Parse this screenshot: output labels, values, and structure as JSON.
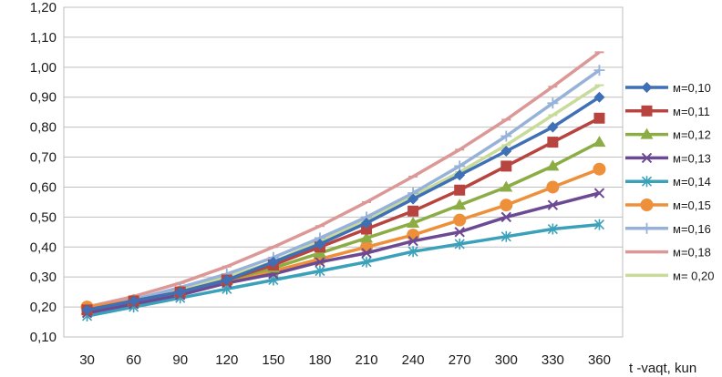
{
  "chart_data": {
    "type": "line",
    "title": "",
    "xlabel": "t -vaqt, kun",
    "ylabel": "",
    "x": [
      30,
      60,
      90,
      120,
      150,
      180,
      210,
      240,
      270,
      300,
      330,
      360
    ],
    "x_tick_labels": [
      "30",
      "60",
      "90",
      "120",
      "150",
      "180",
      "210",
      "240",
      "270",
      "300",
      "330",
      "360"
    ],
    "ylim": [
      0.1,
      1.2
    ],
    "y_ticks": [
      0.1,
      0.2,
      0.3,
      0.4,
      0.5,
      0.6,
      0.7,
      0.8,
      0.9,
      1.0,
      1.1,
      1.2
    ],
    "y_tick_labels": [
      "0,10",
      "0,20",
      "0,30",
      "0,40",
      "0,50",
      "0,60",
      "0,70",
      "0,80",
      "0,90",
      "1,00",
      "1,10",
      "1,20"
    ],
    "grid": "horizontal",
    "legend_position": "right",
    "series": [
      {
        "name": "м=0,10",
        "color": "#3f6fb5",
        "marker": "diamond",
        "values": [
          0.19,
          0.22,
          0.25,
          0.29,
          0.35,
          0.41,
          0.48,
          0.56,
          0.64,
          0.72,
          0.8,
          0.9
        ]
      },
      {
        "name": "м=0,11",
        "color": "#b84440",
        "marker": "square",
        "values": [
          0.19,
          0.22,
          0.25,
          0.29,
          0.34,
          0.4,
          0.46,
          0.52,
          0.59,
          0.67,
          0.75,
          0.83
        ]
      },
      {
        "name": "м=0,12",
        "color": "#8cad45",
        "marker": "triangle",
        "values": [
          0.19,
          0.22,
          0.25,
          0.29,
          0.33,
          0.38,
          0.43,
          0.48,
          0.54,
          0.6,
          0.67,
          0.75
        ]
      },
      {
        "name": "м=0,13",
        "color": "#6b4a93",
        "marker": "x",
        "values": [
          0.18,
          0.21,
          0.24,
          0.28,
          0.31,
          0.35,
          0.38,
          0.42,
          0.45,
          0.5,
          0.54,
          0.58
        ]
      },
      {
        "name": "м=0,14",
        "color": "#3ba1ba",
        "marker": "asterisk",
        "values": [
          0.17,
          0.2,
          0.23,
          0.26,
          0.29,
          0.32,
          0.35,
          0.385,
          0.41,
          0.435,
          0.46,
          0.475
        ]
      },
      {
        "name": "м=0,15",
        "color": "#ee8f3a",
        "marker": "circle",
        "values": [
          0.2,
          0.22,
          0.25,
          0.285,
          0.32,
          0.36,
          0.4,
          0.44,
          0.49,
          0.54,
          0.6,
          0.66
        ]
      },
      {
        "name": "м=0,16",
        "color": "#97b2d9",
        "marker": "plus",
        "values": [
          0.19,
          0.225,
          0.265,
          0.31,
          0.365,
          0.43,
          0.5,
          0.58,
          0.67,
          0.77,
          0.88,
          0.99
        ]
      },
      {
        "name": "м=0,18",
        "color": "#dc9896",
        "marker": "dash",
        "values": [
          0.2,
          0.235,
          0.28,
          0.335,
          0.4,
          0.47,
          0.55,
          0.635,
          0.725,
          0.825,
          0.935,
          1.05
        ]
      },
      {
        "name": "м= 0,20",
        "color": "#c8db9a",
        "marker": "dash",
        "values": [
          0.19,
          0.22,
          0.26,
          0.3,
          0.35,
          0.42,
          0.49,
          0.57,
          0.65,
          0.74,
          0.84,
          0.94
        ]
      }
    ]
  }
}
